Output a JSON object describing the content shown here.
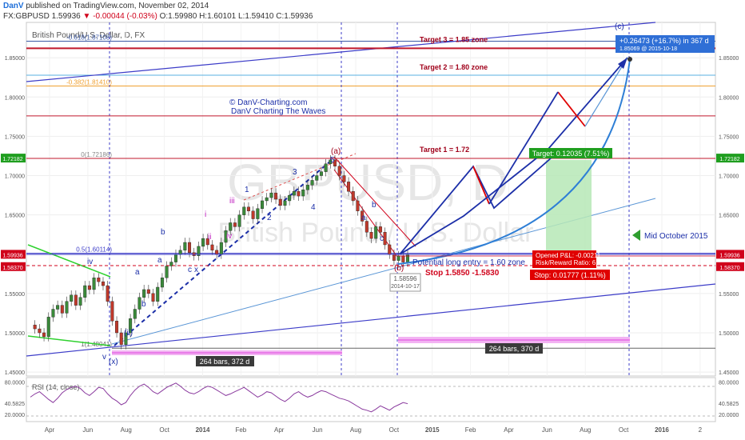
{
  "header": {
    "author": "DanV",
    "published": "published on TradingView.com, November 02, 2014",
    "symbol": "FX:GBPUSD",
    "last": "1.59936",
    "change": "-0.00044 (-0.03%)",
    "ohlc": "O:1.59980 H:1.60101 L:1.59410 C:1.59936"
  },
  "chart_data": {
    "type": "line",
    "title": "British Pound/U.S. Dollar, D, FX",
    "watermark_symbol": "GBPUSD, D",
    "watermark_name": "British Pound / U.S. Dollar",
    "x_ticks": [
      "Apr",
      "Jun",
      "Aug",
      "Oct",
      "2014",
      "Feb",
      "Apr",
      "Jun",
      "Aug",
      "Oct",
      "2015",
      "Feb",
      "Apr",
      "Jun",
      "Aug",
      "Oct",
      "2016",
      "2"
    ],
    "y_ticks": [
      "1.85000",
      "1.80000",
      "1.75000",
      "1.70000",
      "1.65000",
      "1.60000",
      "1.55000",
      "1.50000",
      "1.45000"
    ],
    "ylim": [
      1.445,
      1.895
    ],
    "price_tags": [
      {
        "label": "1.72182",
        "value": 1.72182,
        "color": "#1f9e1f"
      },
      {
        "label": "1.59936",
        "value": 1.59936,
        "color": "#d0021b"
      },
      {
        "label": "1.58370",
        "value": 1.5837,
        "color": "#d0021b"
      }
    ],
    "price_tags_right": [
      {
        "label": "1.72182",
        "value": 1.72182,
        "color": "#1f9e1f"
      },
      {
        "label": "1.59936",
        "value": 1.59936,
        "color": "#d0021b"
      },
      {
        "label": "1.58370",
        "value": 1.5837,
        "color": "#d0021b"
      }
    ],
    "fib_levels": [
      {
        "label": "-0.618(1.87108)",
        "value": 1.87108,
        "color": "#3c5aa6"
      },
      {
        "label": "-0.382(1.81410)",
        "value": 1.8141,
        "color": "#f0a030"
      },
      {
        "label": "0(1.72186)",
        "value": 1.72186,
        "color": "#888888"
      },
      {
        "label": "0.5(1.60114)",
        "value": 1.60114,
        "color": "#3c3cc8"
      },
      {
        "label": "1(1.48041)",
        "value": 1.48041,
        "color": "#666666"
      }
    ],
    "targets": [
      {
        "label": "Target 3 = 1.85 zone",
        "value": 1.862
      },
      {
        "label": "Target 2 = 1.80 zone",
        "value": 1.776
      },
      {
        "label": "Target 1 = 1.72",
        "value": 1.72186
      }
    ],
    "brand_line1": "© DanV-Charting.com",
    "brand_line2": "DanV Charting The Waves",
    "entry_label": "Potential long entry = 1.60 zone",
    "stop_label": "Stop 1.5850 -1.5830",
    "low_label_price": "1.58596",
    "low_label_date": "2014-10-17",
    "range_label_1": "264 bars, 372 d",
    "range_label_2": "264 bars, 370 d",
    "measure_label": "+0.26473 (+16.7%) in 367 d",
    "measure_sub": "1.85069 @ 2015-10-18",
    "target_box": "Target: 0.12035 (7.51%)",
    "pnl_box": "Opened P&L: -0.00211",
    "rr_box": "Risk/Reward Ratio: 6.77",
    "stop_box": "Stop: 0.01777 (1.11%)",
    "mid_october": "Mid October 2015",
    "wave_labels": {
      "a_top": "(a)",
      "five": "5",
      "b_low": "(b)",
      "c_top": "(c)",
      "v": "v",
      "x": "(x)",
      "iv": "iv",
      "ii": "(ii)",
      "a": "a",
      "b": "b",
      "c": "c",
      "x_small": "x",
      "i": "i",
      "ii_s": "ii",
      "iii": "iii",
      "iv_s": "iv",
      "one": "1",
      "two": "2",
      "three": "3",
      "four": "4"
    },
    "rsi": {
      "label": "RSI (14, close)",
      "ticks": [
        "80.0000",
        "40.5825",
        "20.0000"
      ],
      "ylim": [
        10,
        85
      ],
      "last": 40.5825,
      "values": [
        52,
        58,
        62,
        55,
        48,
        42,
        50,
        60,
        66,
        70,
        72,
        68,
        60,
        55,
        62,
        70,
        68,
        58,
        50,
        45,
        38,
        42,
        55,
        65,
        72,
        76,
        70,
        62,
        58,
        64,
        70,
        74,
        78,
        72,
        65,
        60,
        58,
        62,
        68,
        72,
        70,
        65,
        60,
        55,
        58,
        62,
        66,
        70,
        64,
        58,
        52,
        56,
        62,
        60,
        54,
        48,
        44,
        50,
        58,
        62,
        56,
        52,
        55,
        60,
        64,
        62,
        58,
        54,
        50,
        48,
        45,
        40,
        35,
        30,
        28,
        25,
        30,
        36,
        32,
        28,
        34,
        38,
        42,
        40
      ]
    },
    "price": {
      "x_start": "2013-03-01",
      "x_end": "2014-10-31",
      "values": [
        1.51,
        1.505,
        1.5,
        1.495,
        1.52,
        1.53,
        1.535,
        1.525,
        1.54,
        1.548,
        1.535,
        1.545,
        1.56,
        1.555,
        1.57,
        1.565,
        1.56,
        1.54,
        1.515,
        1.5,
        1.485,
        1.5,
        1.518,
        1.53,
        1.545,
        1.555,
        1.55,
        1.54,
        1.558,
        1.57,
        1.585,
        1.59,
        1.6,
        1.605,
        1.615,
        1.602,
        1.598,
        1.61,
        1.62,
        1.612,
        1.605,
        1.6,
        1.615,
        1.63,
        1.64,
        1.635,
        1.65,
        1.66,
        1.655,
        1.645,
        1.658,
        1.668,
        1.672,
        1.678,
        1.67,
        1.662,
        1.668,
        1.675,
        1.68,
        1.674,
        1.682,
        1.688,
        1.694,
        1.7,
        1.705,
        1.715,
        1.72,
        1.712,
        1.7,
        1.692,
        1.68,
        1.668,
        1.655,
        1.642,
        1.628,
        1.62,
        1.635,
        1.628,
        1.612,
        1.6,
        1.592,
        1.598,
        1.59,
        1.6
      ]
    }
  }
}
